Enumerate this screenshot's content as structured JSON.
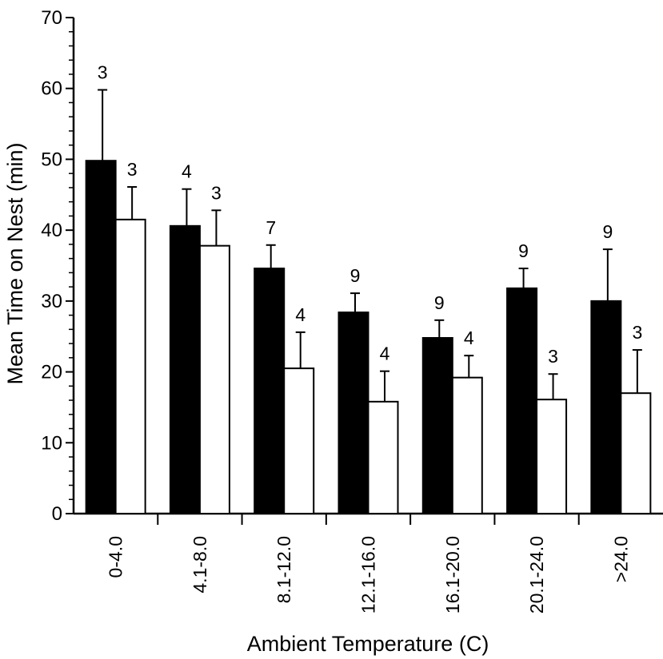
{
  "chart_data": {
    "type": "bar",
    "title": "",
    "xlabel": "Ambient Temperature (C)",
    "ylabel": "Mean Time on Nest (min)",
    "ylim": [
      0,
      70
    ],
    "yticks": [
      "0",
      "10",
      "20",
      "30",
      "40",
      "50",
      "60",
      "70"
    ],
    "categories": [
      "0-4.0",
      "4.1-8.0",
      "8.1-12.0",
      "12.1-16.0",
      "16.1-20.0",
      "20.1-24.0",
      ">24.0"
    ],
    "series": [
      {
        "color": "#000000",
        "values": [
          49.8,
          40.6,
          34.6,
          28.4,
          24.8,
          31.8,
          30.0
        ],
        "error": [
          10.0,
          5.2,
          3.3,
          2.7,
          2.5,
          2.8,
          7.3
        ],
        "n_labels": [
          "3",
          "4",
          "7",
          "9",
          "9",
          "9",
          "9"
        ]
      },
      {
        "color": "#ffffff",
        "values": [
          41.5,
          37.8,
          20.5,
          15.8,
          19.2,
          16.1,
          17.0
        ],
        "error": [
          4.6,
          5.0,
          5.1,
          4.3,
          3.1,
          3.6,
          6.1
        ],
        "n_labels": [
          "3",
          "3",
          "4",
          "4",
          "4",
          "3",
          "3"
        ]
      }
    ],
    "grid": false,
    "legend": "none"
  }
}
